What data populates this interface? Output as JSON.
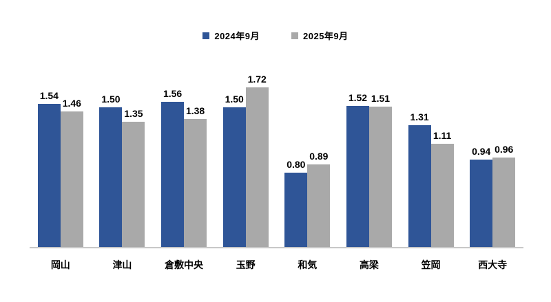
{
  "chart_data": {
    "type": "bar",
    "title": "",
    "categories": [
      "岡山",
      "津山",
      "倉敷中央",
      "玉野",
      "和気",
      "高梁",
      "笠岡",
      "西大寺"
    ],
    "series": [
      {
        "name": "2024年9月",
        "color": "#2F5597",
        "values": [
          1.54,
          1.5,
          1.56,
          1.5,
          0.8,
          1.52,
          1.31,
          0.94
        ]
      },
      {
        "name": "2025年9月",
        "color": "#A9A9A9",
        "values": [
          1.46,
          1.35,
          1.38,
          1.72,
          0.89,
          1.51,
          1.11,
          0.96
        ]
      }
    ],
    "ylim": [
      0,
      2
    ],
    "value_label_decimals": 2,
    "grid": false,
    "legend_position": "top",
    "axis_line_color": "#C8C8C8",
    "text_color": "#000000"
  }
}
